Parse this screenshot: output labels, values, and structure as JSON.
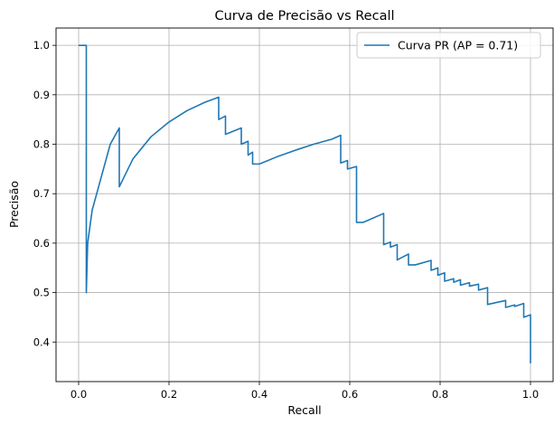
{
  "chart_data": {
    "type": "line",
    "title": "Curva de Precisão vs Recall",
    "xlabel": "Recall",
    "ylabel": "Precisão",
    "xlim": [
      -0.05,
      1.05
    ],
    "ylim": [
      0.32,
      1.035
    ],
    "grid": true,
    "legend_position": "top-right",
    "x_ticks": [
      {
        "value": 0.0,
        "label": "0.0"
      },
      {
        "value": 0.2,
        "label": "0.2"
      },
      {
        "value": 0.4,
        "label": "0.4"
      },
      {
        "value": 0.6,
        "label": "0.6"
      },
      {
        "value": 0.8,
        "label": "0.8"
      },
      {
        "value": 1.0,
        "label": "1.0"
      }
    ],
    "y_ticks": [
      {
        "value": 0.4,
        "label": "0.4"
      },
      {
        "value": 0.5,
        "label": "0.5"
      },
      {
        "value": 0.6,
        "label": "0.6"
      },
      {
        "value": 0.7,
        "label": "0.7"
      },
      {
        "value": 0.8,
        "label": "0.8"
      },
      {
        "value": 0.9,
        "label": "0.9"
      },
      {
        "value": 1.0,
        "label": "1.0"
      }
    ],
    "series": [
      {
        "name": "Curva PR (AP = 0.71)",
        "color": "#1f77b4",
        "x": [
          0.0,
          0.017,
          0.017,
          0.02,
          0.03,
          0.04,
          0.055,
          0.07,
          0.09,
          0.09,
          0.12,
          0.16,
          0.2,
          0.24,
          0.28,
          0.31,
          0.31,
          0.325,
          0.325,
          0.36,
          0.36,
          0.375,
          0.375,
          0.385,
          0.385,
          0.4,
          0.4,
          0.44,
          0.48,
          0.52,
          0.56,
          0.58,
          0.58,
          0.595,
          0.595,
          0.615,
          0.615,
          0.63,
          0.63,
          0.675,
          0.675,
          0.69,
          0.69,
          0.705,
          0.705,
          0.73,
          0.73,
          0.745,
          0.745,
          0.78,
          0.78,
          0.795,
          0.795,
          0.81,
          0.81,
          0.83,
          0.83,
          0.845,
          0.845,
          0.865,
          0.865,
          0.885,
          0.885,
          0.905,
          0.905,
          0.945,
          0.945,
          0.965,
          0.965,
          0.985,
          0.985,
          1.0,
          1.0
        ],
        "y": [
          1.0,
          1.0,
          0.5,
          0.6,
          0.667,
          0.7,
          0.75,
          0.8,
          0.833,
          0.714,
          0.77,
          0.815,
          0.845,
          0.868,
          0.885,
          0.895,
          0.85,
          0.857,
          0.82,
          0.833,
          0.8,
          0.806,
          0.778,
          0.784,
          0.76,
          0.76,
          0.76,
          0.775,
          0.788,
          0.8,
          0.81,
          0.818,
          0.762,
          0.767,
          0.75,
          0.755,
          0.642,
          0.642,
          0.642,
          0.66,
          0.597,
          0.602,
          0.592,
          0.597,
          0.566,
          0.578,
          0.556,
          0.556,
          0.556,
          0.565,
          0.545,
          0.55,
          0.535,
          0.54,
          0.523,
          0.528,
          0.521,
          0.526,
          0.515,
          0.52,
          0.513,
          0.517,
          0.505,
          0.51,
          0.476,
          0.484,
          0.47,
          0.475,
          0.472,
          0.478,
          0.45,
          0.455,
          0.357
        ]
      }
    ]
  }
}
